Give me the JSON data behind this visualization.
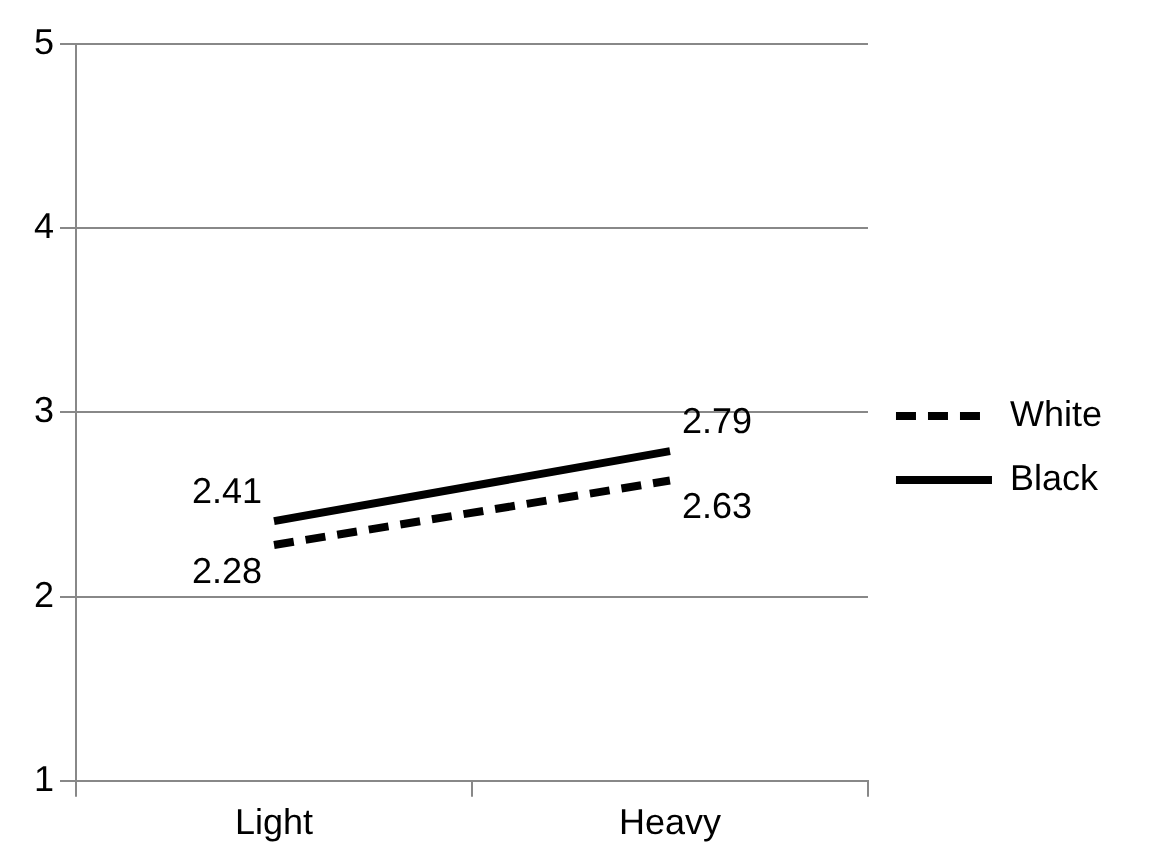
{
  "chart_data": {
    "type": "line",
    "categories": [
      "Light",
      "Heavy"
    ],
    "series": [
      {
        "name": "White",
        "color": "#000000",
        "values": [
          2.28,
          2.63
        ],
        "line_style": "dashed"
      },
      {
        "name": "Black",
        "color": "#000000",
        "values": [
          2.41,
          2.79
        ],
        "line_style": "solid"
      }
    ],
    "ylim": [
      1,
      5
    ],
    "yticks": [
      1,
      2,
      3,
      4,
      5
    ],
    "grid": "y",
    "legend": "right",
    "marker": "none",
    "data_labels": true
  }
}
